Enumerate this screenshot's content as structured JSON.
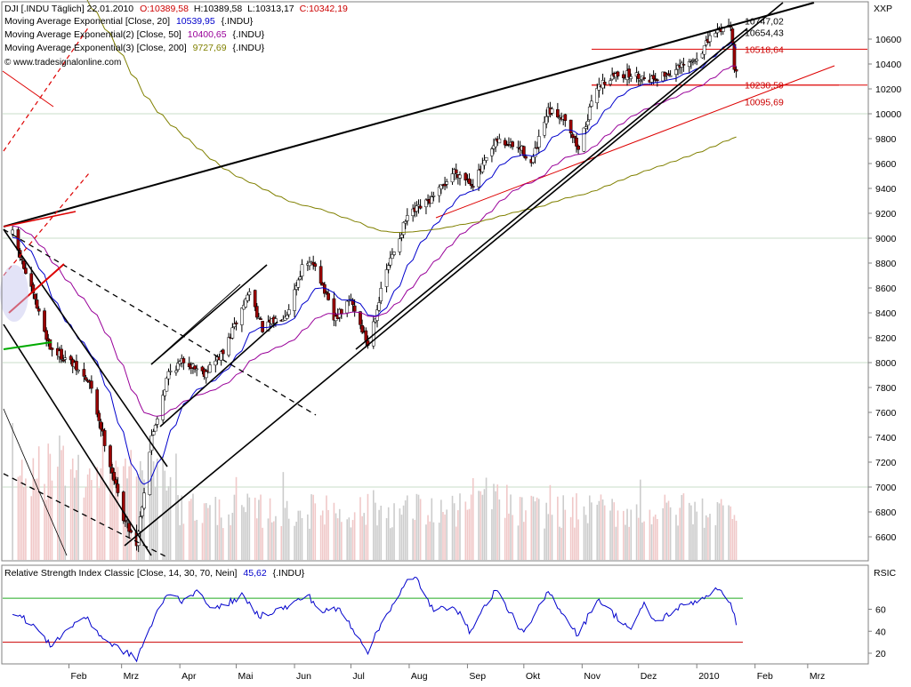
{
  "header": {
    "symbol": "DJI [.INDU Täglich] 22.01.2010",
    "open": "O:10389,58",
    "high": "H:10389,58",
    "low": "L:10313,17",
    "close": "C:10342,19"
  },
  "legend": [
    {
      "label": "Moving Average Exponential [Close, 20]",
      "value": "10539,95",
      "suffix": "{.INDU}",
      "color": "#0000cc"
    },
    {
      "label": "Moving Average Exponential(2) [Close, 50]",
      "value": "10400,65",
      "suffix": "{.INDU}",
      "color": "#990099"
    },
    {
      "label": "Moving Average Exponential(3) [Close, 200]",
      "value": "9727,69",
      "suffix": "{.INDU}",
      "color": "#808000"
    }
  ],
  "copyright": "© www.tradesignalonline.com",
  "price_axis_title": "XXP",
  "rsi_axis_title": "RSIC",
  "rsi_legend": {
    "label": "Relative Strength Index Classic [Close, 14, 30, 70, Nein]",
    "value": "45,62",
    "suffix": "{.INDU}"
  },
  "months": [
    "Feb",
    "Mrz",
    "Apr",
    "Mai",
    "Jun",
    "Jul",
    "Aug",
    "Sep",
    "Okt",
    "Nov",
    "Dez",
    "2010",
    "Feb",
    "Mrz"
  ],
  "price_ticks": [
    "10600",
    "10400",
    "10200",
    "10000",
    "9800",
    "9600",
    "9400",
    "9200",
    "9000",
    "8800",
    "8600",
    "8400",
    "8200",
    "8000",
    "7800",
    "7600",
    "7400",
    "7200",
    "7000",
    "6800",
    "6600"
  ],
  "rsi_ticks": [
    "60",
    "40",
    "20"
  ],
  "price_labels": [
    {
      "text": "10747,02",
      "value": 10747.02,
      "color": "#000000"
    },
    {
      "text": "10654,43",
      "value": 10654.43,
      "color": "#000000"
    },
    {
      "text": "10518,64",
      "value": 10518.64,
      "color": "#cc0000"
    },
    {
      "text": "10230,59",
      "value": 10230.59,
      "color": "#cc0000"
    },
    {
      "text": "10095,69",
      "value": 10095.69,
      "color": "#cc0000"
    }
  ],
  "colors": {
    "bull": "#ffffff",
    "bear": "#990000",
    "ema20": "#0000cc",
    "ema50": "#990099",
    "ema200": "#808000",
    "rsi": "#0000cc",
    "trend": "#000000",
    "red": "#dd0000",
    "grid": "#c8dcc8"
  },
  "chart_data": {
    "type": "candlestick",
    "title": "DJI [.INDU Täglich] 22.01.2010",
    "date_range": [
      "2009-01-02",
      "2010-01-22"
    ],
    "ylim": [
      6400,
      10800
    ],
    "last_bar": {
      "open": 10389.58,
      "high": 10389.58,
      "low": 10313.17,
      "close": 10342.19
    },
    "close_path": [
      [
        "2009-01-02",
        9034
      ],
      [
        "2009-01-12",
        8580
      ],
      [
        "2009-01-22",
        8120
      ],
      [
        "2009-02-02",
        8000
      ],
      [
        "2009-02-12",
        7830
      ],
      [
        "2009-02-20",
        7365
      ],
      [
        "2009-03-02",
        6760
      ],
      [
        "2009-03-09",
        6547
      ],
      [
        "2009-03-17",
        7395
      ],
      [
        "2009-03-26",
        7920
      ],
      [
        "2009-04-03",
        8017
      ],
      [
        "2009-04-14",
        7920
      ],
      [
        "2009-04-24",
        8076
      ],
      [
        "2009-05-08",
        8574
      ],
      [
        "2009-05-15",
        8268
      ],
      [
        "2009-05-28",
        8403
      ],
      [
        "2009-06-05",
        8763
      ],
      [
        "2009-06-12",
        8800
      ],
      [
        "2009-06-22",
        8339
      ],
      [
        "2009-07-01",
        8504
      ],
      [
        "2009-07-10",
        8146
      ],
      [
        "2009-07-20",
        8743
      ],
      [
        "2009-07-31",
        9172
      ],
      [
        "2009-08-14",
        9321
      ],
      [
        "2009-08-25",
        9540
      ],
      [
        "2009-09-04",
        9442
      ],
      [
        "2009-09-17",
        9783
      ],
      [
        "2009-09-30",
        9712
      ],
      [
        "2009-10-05",
        9599
      ],
      [
        "2009-10-14",
        10015
      ],
      [
        "2009-10-23",
        9972
      ],
      [
        "2009-10-30",
        9713
      ],
      [
        "2009-11-09",
        10226
      ],
      [
        "2009-11-20",
        10318
      ],
      [
        "2009-11-27",
        10310
      ],
      [
        "2009-12-08",
        10285
      ],
      [
        "2009-12-18",
        10328
      ],
      [
        "2009-12-31",
        10428
      ],
      [
        "2010-01-11",
        10663
      ],
      [
        "2010-01-19",
        10725
      ],
      [
        "2010-01-21",
        10389
      ],
      [
        "2010-01-22",
        10342
      ]
    ],
    "series": [
      {
        "name": "Moving Average Exponential [Close, 20]",
        "last": 10539.95
      },
      {
        "name": "Moving Average Exponential(2) [Close, 50]",
        "last": 10400.65
      },
      {
        "name": "Moving Average Exponential(3) [Close, 200]",
        "last": 9727.69
      }
    ],
    "horizontal_levels": [
      10518.64,
      10230.59
    ],
    "rsi": {
      "ylim": [
        10,
        95
      ],
      "upper": 70,
      "lower": 30,
      "last": 45.62,
      "path": [
        [
          "2009-01-02",
          58
        ],
        [
          "2009-01-13",
          46
        ],
        [
          "2009-01-22",
          27
        ],
        [
          "2009-02-02",
          44
        ],
        [
          "2009-02-09",
          54
        ],
        [
          "2009-02-20",
          32
        ],
        [
          "2009-03-02",
          22
        ],
        [
          "2009-03-09",
          15
        ],
        [
          "2009-03-19",
          54
        ],
        [
          "2009-03-26",
          75
        ],
        [
          "2009-04-02",
          68
        ],
        [
          "2009-04-09",
          76
        ],
        [
          "2009-04-20",
          60
        ],
        [
          "2009-05-04",
          72
        ],
        [
          "2009-05-13",
          54
        ],
        [
          "2009-05-28",
          62
        ],
        [
          "2009-06-08",
          73
        ],
        [
          "2009-06-15",
          58
        ],
        [
          "2009-06-25",
          60
        ],
        [
          "2009-07-07",
          30
        ],
        [
          "2009-07-10",
          22
        ],
        [
          "2009-07-20",
          56
        ],
        [
          "2009-07-31",
          85
        ],
        [
          "2009-08-05",
          88
        ],
        [
          "2009-08-14",
          58
        ],
        [
          "2009-08-25",
          64
        ],
        [
          "2009-09-02",
          40
        ],
        [
          "2009-09-16",
          78
        ],
        [
          "2009-10-01",
          37
        ],
        [
          "2009-10-14",
          76
        ],
        [
          "2009-10-30",
          36
        ],
        [
          "2009-11-09",
          70
        ],
        [
          "2009-11-20",
          52
        ],
        [
          "2009-11-27",
          42
        ],
        [
          "2009-12-04",
          64
        ],
        [
          "2009-12-10",
          48
        ],
        [
          "2009-12-23",
          62
        ],
        [
          "2010-01-04",
          70
        ],
        [
          "2010-01-11",
          78
        ],
        [
          "2010-01-19",
          68
        ],
        [
          "2010-01-22",
          45.62
        ]
      ]
    },
    "volume": {
      "note": "volume bars shown without a scale",
      "bull_color": "#cccccc",
      "bear_color": "#f0c8c8"
    }
  }
}
